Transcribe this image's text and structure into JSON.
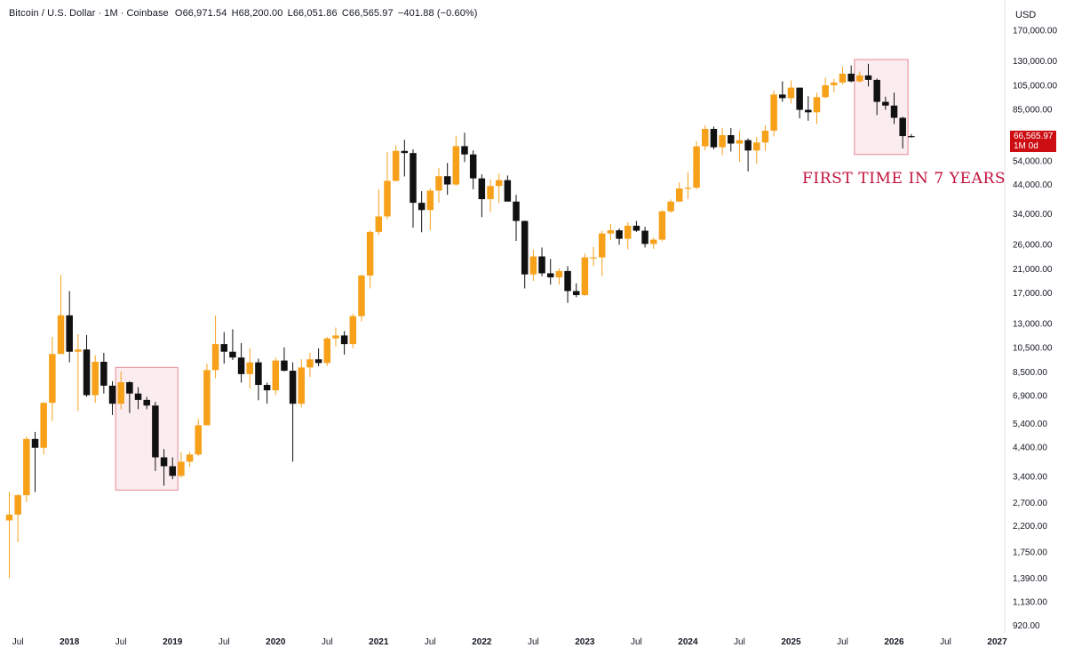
{
  "header": {
    "symbol": "Bitcoin / U.S. Dollar",
    "interval": "1M",
    "exchange": "Coinbase",
    "open": "O66,971.54",
    "high": "H68,200.00",
    "low": "L66,051.86",
    "close": "C66,565.97",
    "change": "−401.88 (−0.60%)"
  },
  "currency_label": "USD",
  "last_price_tag": {
    "price": "66,565.97",
    "countdown": "1M 0d"
  },
  "annotation": "FIRST TIME IN 7 YEARS",
  "colors": {
    "up": "#f7a11a",
    "down": "#111111",
    "box_border": "#e79aa6",
    "box_fill": "#fbecef",
    "annotation": "#c2103a",
    "price_tag": "#cc0d12"
  },
  "chart_data": {
    "type": "candlestick",
    "title": "",
    "y_scale": "log",
    "ylim": [
      850,
      190000
    ],
    "y_tick_labels": [
      "170,000.00",
      "130,000.00",
      "105,000.00",
      "85,000.00",
      "54,000.00",
      "44,000.00",
      "34,000.00",
      "26,000.00",
      "21,000.00",
      "17,000.00",
      "13,000.00",
      "10,500.00",
      "8,500.00",
      "6,900.00",
      "5,400.00",
      "4,400.00",
      "3,400.00",
      "2,700.00",
      "2,200.00",
      "1,750.00",
      "1,390.00",
      "1,130.00",
      "920.00"
    ],
    "x_tick_labels": [
      "Jul",
      "2018",
      "Jul",
      "2019",
      "Jul",
      "2020",
      "Jul",
      "2021",
      "Jul",
      "2022",
      "Jul",
      "2023",
      "Jul",
      "2024",
      "Jul",
      "2025",
      "Jul",
      "2026",
      "Jul",
      "2027"
    ],
    "x_start": "2017-06",
    "candles": [
      [
        "2017-06",
        2300,
        2950,
        1390,
        2420
      ],
      [
        "2017-07",
        2420,
        2900,
        1900,
        2870
      ],
      [
        "2017-08",
        2870,
        4800,
        2700,
        4700
      ],
      [
        "2017-09",
        4700,
        5000,
        2950,
        4350
      ],
      [
        "2017-10",
        4350,
        6500,
        4100,
        6450
      ],
      [
        "2017-11",
        6450,
        11500,
        5500,
        9900
      ],
      [
        "2017-12",
        9900,
        19800,
        10500,
        13900
      ],
      [
        "2018-01",
        13900,
        17200,
        9200,
        10100
      ],
      [
        "2018-02",
        10100,
        11800,
        6000,
        10300
      ],
      [
        "2018-03",
        10300,
        11700,
        6800,
        6900
      ],
      [
        "2018-04",
        6900,
        9800,
        6450,
        9250
      ],
      [
        "2018-05",
        9250,
        10000,
        7000,
        7500
      ],
      [
        "2018-06",
        7500,
        7800,
        5800,
        6400
      ],
      [
        "2018-07",
        6400,
        8500,
        6100,
        7730
      ],
      [
        "2018-08",
        7730,
        7800,
        5900,
        7000
      ],
      [
        "2018-09",
        7000,
        7400,
        6100,
        6620
      ],
      [
        "2018-10",
        6620,
        6800,
        6100,
        6300
      ],
      [
        "2018-11",
        6300,
        6500,
        3550,
        4000
      ],
      [
        "2018-12",
        4000,
        4300,
        3120,
        3700
      ],
      [
        "2019-01",
        3700,
        4000,
        3300,
        3400
      ],
      [
        "2019-02",
        3400,
        4200,
        3350,
        3850
      ],
      [
        "2019-03",
        3850,
        4200,
        3680,
        4100
      ],
      [
        "2019-04",
        4100,
        5600,
        4050,
        5300
      ],
      [
        "2019-05",
        5300,
        9100,
        5300,
        8600
      ],
      [
        "2019-06",
        8600,
        13900,
        8000,
        10800
      ],
      [
        "2019-07",
        10800,
        12000,
        9100,
        10100
      ],
      [
        "2019-08",
        10100,
        12300,
        9400,
        9600
      ],
      [
        "2019-09",
        9600,
        10900,
        7700,
        8300
      ],
      [
        "2019-10",
        8300,
        10400,
        7300,
        9200
      ],
      [
        "2019-11",
        9200,
        9500,
        6600,
        7550
      ],
      [
        "2019-12",
        7550,
        7700,
        6400,
        7200
      ],
      [
        "2020-01",
        7200,
        9600,
        6900,
        9350
      ],
      [
        "2020-02",
        9350,
        10500,
        8500,
        8550
      ],
      [
        "2020-03",
        8550,
        9200,
        3850,
        6400
      ],
      [
        "2020-04",
        6400,
        9450,
        6200,
        8800
      ],
      [
        "2020-05",
        8800,
        10000,
        8100,
        9450
      ],
      [
        "2020-06",
        9450,
        10400,
        8900,
        9150
      ],
      [
        "2020-07",
        9150,
        11500,
        8900,
        11350
      ],
      [
        "2020-08",
        11350,
        12500,
        10600,
        11650
      ],
      [
        "2020-09",
        11650,
        12100,
        9850,
        10800
      ],
      [
        "2020-10",
        10800,
        14100,
        10400,
        13800
      ],
      [
        "2020-11",
        13800,
        19900,
        13200,
        19700
      ],
      [
        "2020-12",
        19700,
        29300,
        17600,
        28900
      ],
      [
        "2021-01",
        28900,
        42000,
        28100,
        33100
      ],
      [
        "2021-02",
        33100,
        58300,
        32300,
        45200
      ],
      [
        "2021-03",
        45200,
        61800,
        45000,
        58800
      ],
      [
        "2021-04",
        58800,
        64800,
        47000,
        57700
      ],
      [
        "2021-05",
        57700,
        59600,
        30000,
        37300
      ],
      [
        "2021-06",
        37300,
        41300,
        28800,
        35000
      ],
      [
        "2021-07",
        35000,
        42300,
        29300,
        41500
      ],
      [
        "2021-08",
        41500,
        50500,
        37300,
        47100
      ],
      [
        "2021-09",
        47100,
        52900,
        40000,
        43800
      ],
      [
        "2021-10",
        43800,
        67000,
        43300,
        61300
      ],
      [
        "2021-11",
        61300,
        69000,
        53300,
        57000
      ],
      [
        "2021-12",
        57000,
        59100,
        42000,
        46200
      ],
      [
        "2022-01",
        46200,
        47900,
        32900,
        38500
      ],
      [
        "2022-02",
        38500,
        45800,
        34300,
        43200
      ],
      [
        "2022-03",
        43200,
        48200,
        37200,
        45500
      ],
      [
        "2022-04",
        45500,
        47400,
        37700,
        37700
      ],
      [
        "2022-05",
        37700,
        40000,
        26700,
        31800
      ],
      [
        "2022-06",
        31800,
        31900,
        17600,
        19900
      ],
      [
        "2022-07",
        19900,
        24700,
        18800,
        23300
      ],
      [
        "2022-08",
        23300,
        25200,
        19600,
        20100
      ],
      [
        "2022-09",
        20100,
        22800,
        18200,
        19400
      ],
      [
        "2022-10",
        19400,
        21000,
        18200,
        20500
      ],
      [
        "2022-11",
        20500,
        21400,
        15500,
        17200
      ],
      [
        "2022-12",
        17200,
        18400,
        16300,
        16600
      ],
      [
        "2023-01",
        16600,
        23900,
        16500,
        23100
      ],
      [
        "2023-02",
        23100,
        25300,
        21400,
        23100
      ],
      [
        "2023-03",
        23100,
        29200,
        19600,
        28500
      ],
      [
        "2023-04",
        28500,
        31000,
        26900,
        29300
      ],
      [
        "2023-05",
        29300,
        29800,
        25800,
        27200
      ],
      [
        "2023-06",
        27200,
        31400,
        24800,
        30500
      ],
      [
        "2023-07",
        30500,
        31800,
        28900,
        29200
      ],
      [
        "2023-08",
        29200,
        30200,
        25200,
        26000
      ],
      [
        "2023-09",
        26000,
        27500,
        24900,
        27000
      ],
      [
        "2023-10",
        27000,
        35000,
        26600,
        34600
      ],
      [
        "2023-11",
        34600,
        38400,
        34100,
        37700
      ],
      [
        "2023-12",
        37700,
        44700,
        37600,
        42300
      ],
      [
        "2024-01",
        42300,
        48900,
        38600,
        42600
      ],
      [
        "2024-02",
        42600,
        64000,
        41900,
        61200
      ],
      [
        "2024-03",
        61200,
        73700,
        59100,
        71300
      ],
      [
        "2024-04",
        71300,
        72800,
        59600,
        60700
      ],
      [
        "2024-05",
        60700,
        71900,
        56600,
        67500
      ],
      [
        "2024-06",
        67500,
        71900,
        58500,
        62700
      ],
      [
        "2024-07",
        62700,
        70000,
        53500,
        64600
      ],
      [
        "2024-08",
        64600,
        65600,
        49100,
        59000
      ],
      [
        "2024-09",
        59000,
        66500,
        52600,
        63300
      ],
      [
        "2024-10",
        63300,
        73600,
        58900,
        70200
      ],
      [
        "2024-11",
        70200,
        99800,
        66800,
        96400
      ],
      [
        "2024-12",
        96400,
        108300,
        90500,
        93400
      ],
      [
        "2025-01",
        93400,
        109100,
        89200,
        102400
      ],
      [
        "2025-02",
        102400,
        102500,
        78200,
        84300
      ],
      [
        "2025-03",
        84300,
        95000,
        76600,
        82500
      ],
      [
        "2025-04",
        82500,
        97900,
        74400,
        94200
      ],
      [
        "2025-05",
        94200,
        111900,
        93300,
        104600
      ],
      [
        "2025-06",
        104600,
        110600,
        98200,
        107100
      ],
      [
        "2025-07",
        107100,
        123200,
        105100,
        115800
      ],
      [
        "2025-08",
        115800,
        124500,
        107300,
        108200
      ],
      [
        "2025-09",
        108200,
        117900,
        107300,
        114000
      ],
      [
        "2025-10",
        114000,
        126200,
        103500,
        109600
      ],
      [
        "2025-11",
        109600,
        111000,
        80500,
        90400
      ],
      [
        "2025-12",
        90400,
        94600,
        84400,
        87500
      ],
      [
        "2026-01",
        87500,
        98000,
        74500,
        78600
      ],
      [
        "2026-02",
        78600,
        79300,
        60100,
        66972
      ],
      [
        "2026-03",
        66971.54,
        68200,
        66051.86,
        66565.97
      ]
    ],
    "boxes": [
      {
        "from": "2018-07",
        "to": "2019-01",
        "high": 8800,
        "low": 3000
      },
      {
        "from": "2025-09",
        "to": "2026-02",
        "high": 131000,
        "low": 57000
      }
    ],
    "last_price": 66565.97
  }
}
